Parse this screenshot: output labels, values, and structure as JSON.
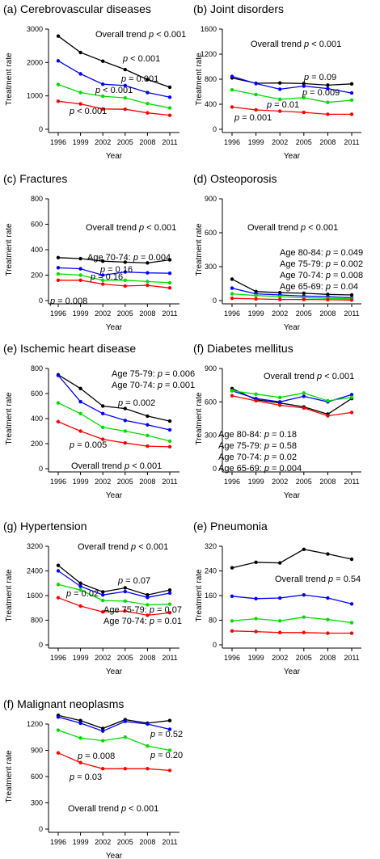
{
  "chart_data": [
    {
      "type": "line",
      "title": "(a) Cerebrovascular diseases",
      "xlabel": "Year",
      "ylabel": "Treatment rate",
      "x": [
        "1996",
        "1999",
        "2002",
        "2005",
        "2008",
        "2011"
      ],
      "ylim": [
        0,
        3000
      ],
      "yticks": [
        "0",
        "1000",
        "2000",
        "3000"
      ],
      "grid": false,
      "series": [
        {
          "color": "#000000",
          "values": [
            2790,
            2300,
            2040,
            1790,
            1490,
            1260
          ]
        },
        {
          "color": "#0000ff",
          "values": [
            2050,
            1660,
            1350,
            1310,
            1100,
            960
          ]
        },
        {
          "color": "#00dd00",
          "values": [
            1340,
            1100,
            990,
            940,
            770,
            640
          ]
        },
        {
          "color": "#ff0000",
          "values": [
            840,
            760,
            610,
            600,
            490,
            420
          ]
        }
      ],
      "annotations": [
        {
          "pre": "Overall trend ",
          "p": "p",
          "post": " < 0.001"
        },
        {
          "pre": "",
          "p": "p",
          "post": " < 0.001"
        },
        {
          "pre": "",
          "p": "p",
          "post": " = 0.001"
        },
        {
          "pre": "",
          "p": "p",
          "post": " < 0.001"
        },
        {
          "pre": "",
          "p": "p",
          "post": " < 0.001"
        }
      ]
    },
    {
      "type": "line",
      "title": "(b) Joint disorders",
      "xlabel": "Year",
      "ylabel": "Treatment rate",
      "x": [
        "1996",
        "1999",
        "2002",
        "2005",
        "2008",
        "2011"
      ],
      "ylim": [
        0,
        1600
      ],
      "yticks": [
        "0",
        "400",
        "800",
        "1200",
        "1600"
      ],
      "grid": false,
      "series": [
        {
          "color": "#000000",
          "values": [
            820,
            735,
            740,
            730,
            705,
            725
          ]
        },
        {
          "color": "#0000ff",
          "values": [
            845,
            730,
            640,
            690,
            650,
            580
          ]
        },
        {
          "color": "#00dd00",
          "values": [
            630,
            555,
            480,
            505,
            430,
            465
          ]
        },
        {
          "color": "#ff0000",
          "values": [
            355,
            310,
            290,
            270,
            240,
            240
          ]
        }
      ],
      "annotations": [
        {
          "pre": "Overall trend ",
          "p": "p",
          "post": " < 0.001"
        },
        {
          "pre": "",
          "p": "p",
          "post": " = 0.09"
        },
        {
          "pre": "",
          "p": "p",
          "post": " = 0.009"
        },
        {
          "pre": "",
          "p": "p",
          "post": " = 0.01"
        },
        {
          "pre": "",
          "p": "p",
          "post": " = 0.001"
        }
      ]
    },
    {
      "type": "line",
      "title": "(c) Fractures",
      "xlabel": "Year",
      "ylabel": "Treatment rate",
      "x": [
        "1996",
        "1999",
        "2002",
        "2005",
        "2008",
        "2011"
      ],
      "ylim": [
        0,
        800
      ],
      "yticks": [
        "0",
        "200",
        "400",
        "600",
        "800"
      ],
      "grid": false,
      "series": [
        {
          "color": "#000000",
          "values": [
            338,
            330,
            310,
            302,
            296,
            320
          ]
        },
        {
          "color": "#0000ff",
          "values": [
            258,
            250,
            200,
            225,
            218,
            215
          ]
        },
        {
          "color": "#00dd00",
          "values": [
            210,
            200,
            160,
            160,
            150,
            140
          ]
        },
        {
          "color": "#ff0000",
          "values": [
            160,
            160,
            130,
            115,
            120,
            100
          ]
        }
      ],
      "annotations": [
        {
          "pre": "Overall trend ",
          "p": "p",
          "post": " < 0.001"
        },
        {
          "pre": "Age 70-74: ",
          "p": "p",
          "post": " = 0.004"
        },
        {
          "pre": "",
          "p": "p",
          "post": " = 0.16"
        },
        {
          "pre": "",
          "p": "p",
          "post": " = 0.16"
        },
        {
          "pre": "",
          "p": "p",
          "post": " = 0.008"
        }
      ]
    },
    {
      "type": "line",
      "title": "(d) Osteoporosis",
      "xlabel": "Year",
      "ylabel": "Treatment rate",
      "x": [
        "1996",
        "1999",
        "2002",
        "2005",
        "2008",
        "2011"
      ],
      "ylim": [
        0,
        900
      ],
      "yticks": [
        "0",
        "300",
        "600",
        "900"
      ],
      "grid": false,
      "series": [
        {
          "color": "#000000",
          "values": [
            190,
            80,
            70,
            65,
            55,
            50
          ]
        },
        {
          "color": "#0000ff",
          "values": [
            110,
            60,
            50,
            40,
            35,
            25
          ]
        },
        {
          "color": "#00dd00",
          "values": [
            60,
            45,
            35,
            25,
            20,
            15
          ]
        },
        {
          "color": "#ff0000",
          "values": [
            20,
            15,
            10,
            10,
            8,
            5
          ]
        }
      ],
      "annotations": [
        {
          "pre": "Overall trend ",
          "p": "p",
          "post": " < 0.001"
        },
        {
          "pre": "Age 80-84: ",
          "p": "p",
          "post": " = 0.049"
        },
        {
          "pre": "Age 75-79: ",
          "p": "p",
          "post": " = 0.002"
        },
        {
          "pre": "Age 70-74: ",
          "p": "p",
          "post": " = 0.008"
        },
        {
          "pre": "Age 65-69: ",
          "p": "p",
          "post": " = 0.04"
        }
      ]
    },
    {
      "type": "line",
      "title": "(e) Ischemic heart disease",
      "xlabel": "Year",
      "ylabel": "Treatment rate",
      "x": [
        "1996",
        "1999",
        "2002",
        "2005",
        "2008",
        "2011"
      ],
      "ylim": [
        0,
        800
      ],
      "yticks": [
        "0",
        "200",
        "400",
        "600",
        "800"
      ],
      "grid": false,
      "series": [
        {
          "color": "#000000",
          "values": [
            750,
            640,
            500,
            480,
            420,
            380
          ]
        },
        {
          "color": "#0000ff",
          "values": [
            745,
            535,
            440,
            385,
            350,
            310
          ]
        },
        {
          "color": "#00dd00",
          "values": [
            525,
            440,
            330,
            300,
            265,
            220
          ]
        },
        {
          "color": "#ff0000",
          "values": [
            375,
            300,
            235,
            205,
            180,
            175
          ]
        }
      ],
      "annotations": [
        {
          "pre": "Age 75-79: ",
          "p": "p",
          "post": " = 0.006"
        },
        {
          "pre": "Age 70-74: ",
          "p": "p",
          "post": " = 0.001"
        },
        {
          "pre": "",
          "p": "p",
          "post": " = 0.002"
        },
        {
          "pre": "",
          "p": "p",
          "post": " = 0.005"
        },
        {
          "pre": "Overall trend ",
          "p": "p",
          "post": " < 0.001"
        }
      ]
    },
    {
      "type": "line",
      "title": "(f) Diabetes mellitus",
      "xlabel": "Year",
      "ylabel": "Treatment rate",
      "x": [
        "1996",
        "1999",
        "2002",
        "2005",
        "2008",
        "2011"
      ],
      "ylim": [
        0,
        900
      ],
      "yticks": [
        "0",
        "300",
        "600",
        "900"
      ],
      "grid": false,
      "series": [
        {
          "color": "#000000",
          "values": [
            720,
            620,
            590,
            555,
            490,
            630
          ]
        },
        {
          "color": "#0000ff",
          "values": [
            700,
            630,
            600,
            650,
            600,
            665
          ]
        },
        {
          "color": "#00dd00",
          "values": [
            700,
            670,
            640,
            680,
            610,
            640
          ]
        },
        {
          "color": "#ff0000",
          "values": [
            655,
            610,
            570,
            545,
            475,
            505
          ]
        }
      ],
      "annotations": [
        {
          "pre": "Overall trend ",
          "p": "p",
          "post": " < 0.001"
        },
        {
          "pre": "Age 80-84: ",
          "p": "p",
          "post": " = 0.18"
        },
        {
          "pre": "Age 75-79: ",
          "p": "p",
          "post": " = 0.58"
        },
        {
          "pre": "Age 70-74: ",
          "p": "p",
          "post": " = 0.02"
        },
        {
          "pre": "Age 65-69: ",
          "p": "p",
          "post": " = 0.004"
        }
      ]
    },
    {
      "type": "line",
      "title": "(g) Hypertension",
      "xlabel": "Year",
      "ylabel": "Treatment rate",
      "x": [
        "1996",
        "1999",
        "2002",
        "2005",
        "2008",
        "2011"
      ],
      "ylim": [
        0,
        3200
      ],
      "yticks": [
        "0",
        "800",
        "1600",
        "2400",
        "3200"
      ],
      "grid": false,
      "series": [
        {
          "color": "#000000",
          "values": [
            2580,
            2000,
            1720,
            1850,
            1620,
            1780
          ]
        },
        {
          "color": "#0000ff",
          "values": [
            2400,
            1900,
            1620,
            1730,
            1540,
            1680
          ]
        },
        {
          "color": "#00dd00",
          "values": [
            1960,
            1780,
            1440,
            1420,
            1300,
            1320
          ]
        },
        {
          "color": "#ff0000",
          "values": [
            1530,
            1260,
            1070,
            1100,
            960,
            1040
          ]
        }
      ],
      "annotations": [
        {
          "pre": "Overall trend ",
          "p": "p",
          "post": " < 0.001"
        },
        {
          "pre": "",
          "p": "p",
          "post": " = 0.07"
        },
        {
          "pre": "",
          "p": "p",
          "post": " = 0.02"
        },
        {
          "pre": "Age 75-79: ",
          "p": "p",
          "post": " = 0.07"
        },
        {
          "pre": "Age 70-74: ",
          "p": "p",
          "post": " = 0.01"
        }
      ]
    },
    {
      "type": "line",
      "title": "(e) Pneumonia",
      "xlabel": "Year",
      "ylabel": "Treatment rate",
      "x": [
        "1996",
        "1999",
        "2002",
        "2005",
        "2008",
        "2011"
      ],
      "ylim": [
        0,
        320
      ],
      "yticks": [
        "0",
        "80",
        "160",
        "240",
        "320"
      ],
      "grid": false,
      "series": [
        {
          "color": "#000000",
          "values": [
            250,
            268,
            266,
            310,
            295,
            278
          ]
        },
        {
          "color": "#0000ff",
          "values": [
            158,
            150,
            152,
            162,
            152,
            133
          ]
        },
        {
          "color": "#00dd00",
          "values": [
            78,
            85,
            78,
            90,
            82,
            72
          ]
        },
        {
          "color": "#ff0000",
          "values": [
            45,
            43,
            40,
            40,
            38,
            38
          ]
        }
      ],
      "annotations": [
        {
          "pre": "Overall trend ",
          "p": "p",
          "post": " = 0.54"
        }
      ]
    },
    {
      "type": "line",
      "title": "(f) Malignant neoplasms",
      "xlabel": "Year",
      "ylabel": "Treatment rate",
      "x": [
        "1996",
        "1999",
        "2002",
        "2005",
        "2008",
        "2011"
      ],
      "ylim": [
        0,
        1200
      ],
      "yticks": [
        "0",
        "300",
        "600",
        "900",
        "1200"
      ],
      "grid": false,
      "series": [
        {
          "color": "#000000",
          "values": [
            1300,
            1240,
            1150,
            1250,
            1210,
            1240
          ]
        },
        {
          "color": "#0000ff",
          "values": [
            1280,
            1210,
            1120,
            1230,
            1200,
            1140
          ]
        },
        {
          "color": "#00dd00",
          "values": [
            1130,
            1040,
            1010,
            1050,
            950,
            900
          ]
        },
        {
          "color": "#ff0000",
          "values": [
            870,
            760,
            690,
            690,
            690,
            670
          ]
        }
      ],
      "annotations": [
        {
          "pre": "",
          "p": "p",
          "post": " = 0.52"
        },
        {
          "pre": "",
          "p": "p",
          "post": " = 0.20"
        },
        {
          "pre": "",
          "p": "p",
          "post": " = 0.008"
        },
        {
          "pre": "",
          "p": "p",
          "post": " = 0.03"
        },
        {
          "pre": "Overall trend ",
          "p": "p",
          "post": " < 0.001"
        }
      ]
    }
  ]
}
